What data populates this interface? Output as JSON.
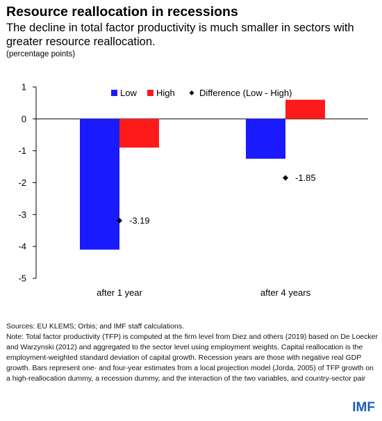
{
  "header": {
    "title": "Resource reallocation in recessions",
    "subtitle": "The decline in total factor productivity is much smaller in sectors with greater resource reallocation.",
    "unit": "(percentage points)"
  },
  "chart_data": {
    "type": "bar",
    "categories": [
      "after 1 year",
      "after 4 years"
    ],
    "series": [
      {
        "name": "Low",
        "values": [
          -4.1,
          -1.25
        ],
        "color": "#1a1aff"
      },
      {
        "name": "High",
        "values": [
          -0.9,
          0.6
        ],
        "color": "#ff1a1a"
      }
    ],
    "points": {
      "name": "Difference (Low - High)",
      "values": [
        -3.19,
        -1.85
      ],
      "labels": [
        "-3.19",
        "-1.85"
      ],
      "marker": "diamond",
      "color": "#000000"
    },
    "yticks": [
      "1",
      "0",
      "-1",
      "-2",
      "-3",
      "-4",
      "-5"
    ],
    "ylim": [
      -5,
      1
    ],
    "grid": false,
    "legend_position": "top-right"
  },
  "notes": {
    "sources": "Sources: EU KLEMS; Orbis; and IMF staff calculations.",
    "note": "Note: Total factor productivity (TFP) is computed at the firm level from Diez and others (2019) based on De Loecker and Warzynski (2012) and aggregated to the sector level using employment weights. Capital reallocation is the employment-weighted standard deviation of capital growth. Recession years are those with negative real GDP growth. Bars represent one- and four-year estimates from a local projection model (Jorda, 2005) of TFP growth on a high-reallocation dummy, a recession dummy, and the interaction of the two variables, and country-sector pair"
  },
  "brand": {
    "logo_text": "IMF",
    "color": "#1e5bb8"
  }
}
